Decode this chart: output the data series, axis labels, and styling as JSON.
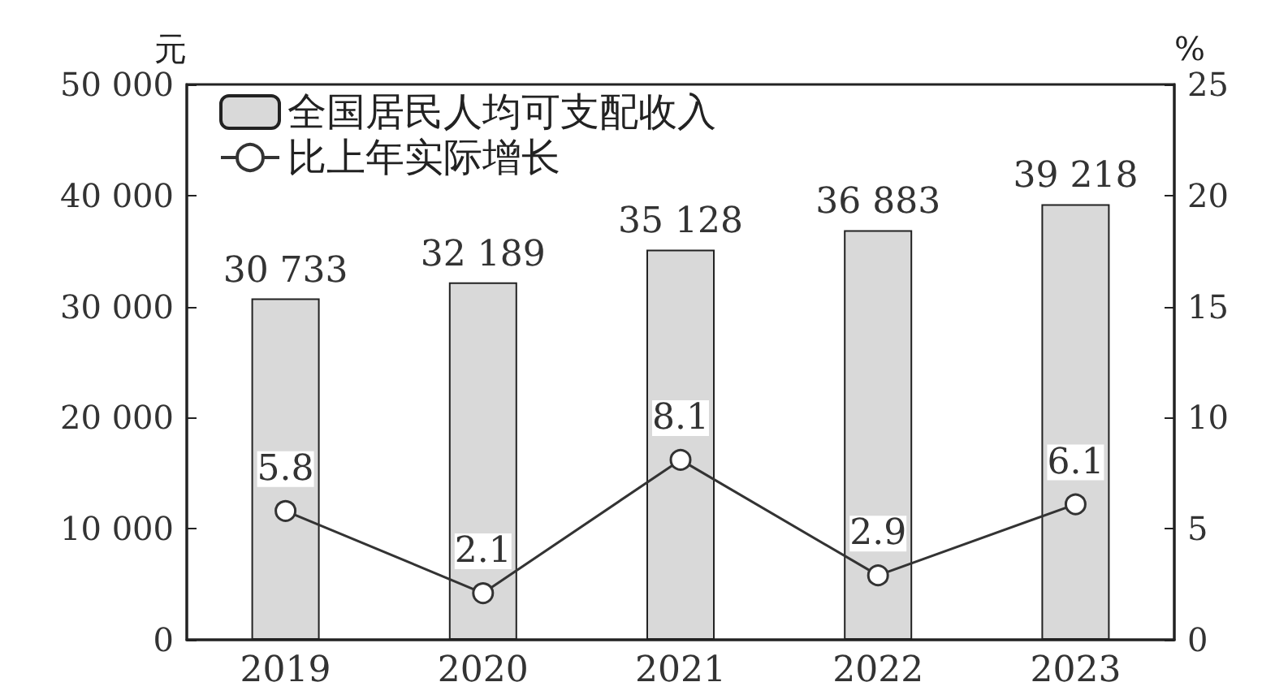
{
  "chart_data": {
    "type": "bar",
    "categories": [
      "2019",
      "2020",
      "2021",
      "2022",
      "2023"
    ],
    "ylabel": "元",
    "y2label": "%",
    "ylim": [
      0,
      50000
    ],
    "yticks": [
      {
        "value": 0,
        "label": "0"
      },
      {
        "value": 10000,
        "label": "10 000"
      },
      {
        "value": 20000,
        "label": "20 000"
      },
      {
        "value": 30000,
        "label": "30 000"
      },
      {
        "value": 40000,
        "label": "40 000"
      },
      {
        "value": 50000,
        "label": "50 000"
      }
    ],
    "y2lim": [
      0,
      25
    ],
    "y2ticks": [
      0,
      5,
      10,
      15,
      20,
      25
    ],
    "series": [
      {
        "name": "全国居民人均可支配收入",
        "color": "#d9d9d9",
        "values": [
          30733,
          32189,
          35128,
          36883,
          39218
        ],
        "value_labels": [
          "30 733",
          "32 189",
          "35 128",
          "36 883",
          "39 218"
        ]
      },
      {
        "name": "比上年实际增长",
        "type": "line",
        "axis": "y2",
        "color": "#333333",
        "values": [
          5.8,
          2.1,
          8.1,
          2.9,
          6.1
        ],
        "value_labels": [
          "5.8",
          "2.1",
          "8.1",
          "2.9",
          "6.1"
        ],
        "marker": "circle",
        "line_style": "solid"
      }
    ],
    "grid": false,
    "legend": "top left"
  }
}
